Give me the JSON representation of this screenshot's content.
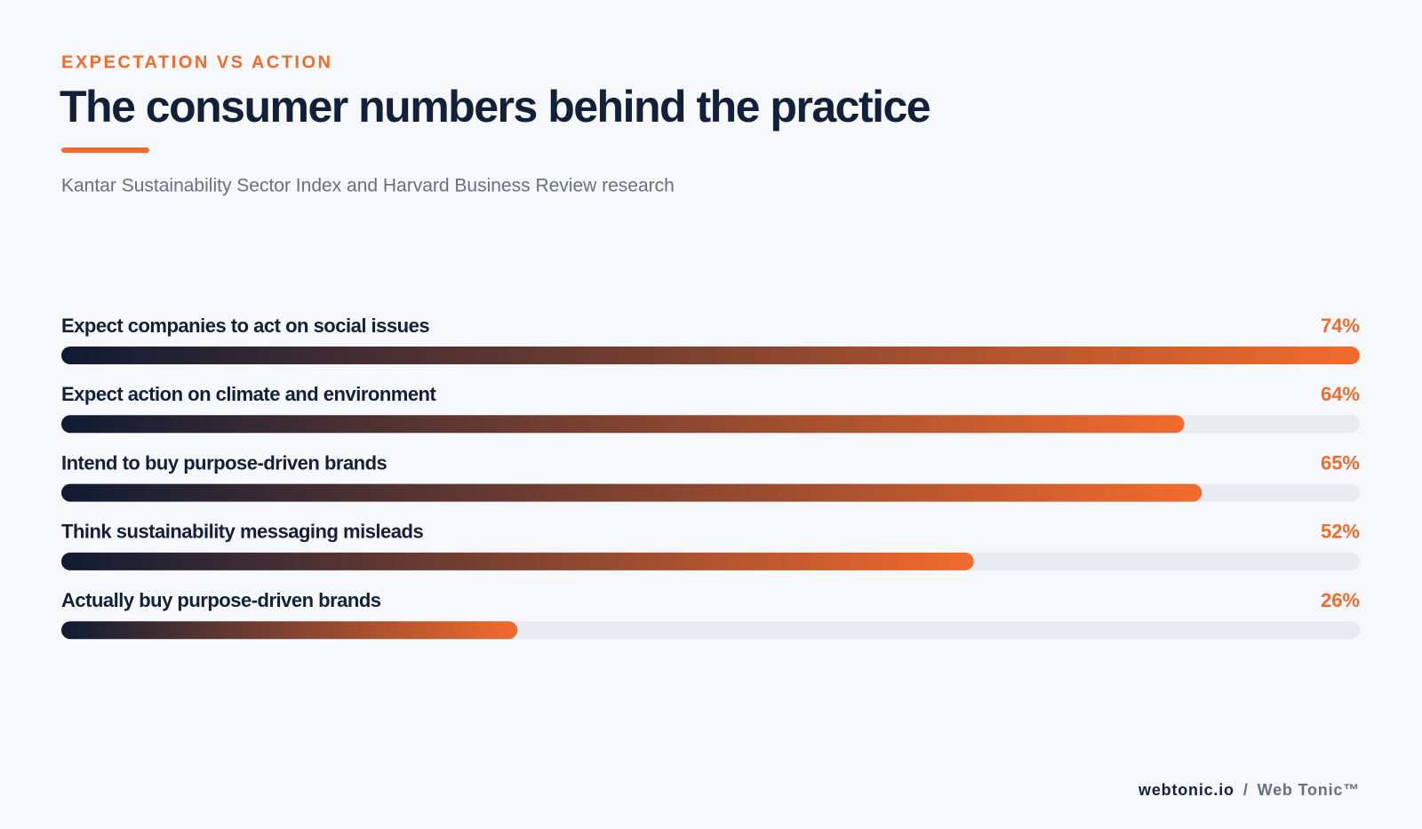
{
  "chart_data": {
    "type": "bar",
    "orientation": "horizontal",
    "kicker": "EXPECTATION VS ACTION",
    "title": "The consumer numbers behind the practice",
    "subtitle": "Kantar Sustainability Sector Index and Harvard Business Review research",
    "categories": [
      "Expect companies to act on social issues",
      "Expect action on climate and environment",
      "Intend to buy purpose-driven brands",
      "Think sustainability messaging misleads",
      "Actually buy purpose-driven brands"
    ],
    "values": [
      74,
      64,
      65,
      52,
      26
    ],
    "value_labels": [
      "74%",
      "64%",
      "65%",
      "52%",
      "26%"
    ],
    "color": "#f26b2d",
    "gradient_start": "#0f1b33",
    "track_color": "#e8ebef",
    "xlim": [
      0,
      74
    ],
    "footer": {
      "site": "webtonic.io",
      "separator": "/",
      "brand": "Web Tonic™"
    }
  }
}
